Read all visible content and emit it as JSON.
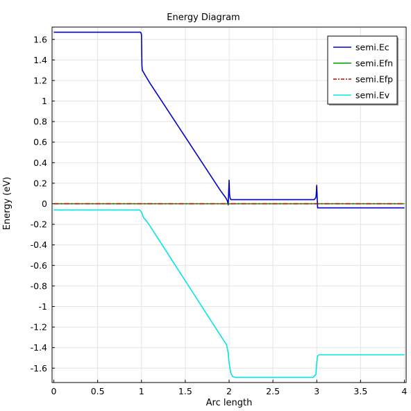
{
  "chart_data": {
    "type": "line",
    "title": "Energy Diagram",
    "xlabel": "Arc length",
    "ylabel": "Energy (eV)",
    "xlim": [
      -0.02,
      4.02
    ],
    "ylim": [
      -1.74,
      1.72
    ],
    "xticks": [
      0,
      0.5,
      1,
      1.5,
      2,
      2.5,
      3,
      3.5,
      4
    ],
    "xtick_labels": [
      "0",
      "0.5",
      "1",
      "1.5",
      "2",
      "2.5",
      "3",
      "3.5",
      "4"
    ],
    "yticks": [
      1.6,
      1.4,
      1.2,
      1,
      0.8,
      0.6,
      0.4,
      0.2,
      0,
      -0.2,
      -0.4,
      -0.6,
      -0.8,
      -1,
      -1.2,
      -1.4,
      -1.6
    ],
    "ytick_labels": [
      "1.6",
      "1.4",
      "1.2",
      "1",
      "0.8",
      "0.6",
      "0.4",
      "0.2",
      "0",
      "-0.2",
      "-0.4",
      "-0.6",
      "-0.8",
      "-1",
      "-1.2",
      "-1.4",
      "-1.6"
    ],
    "grid": true,
    "legend_position": "top-right",
    "series": [
      {
        "name": "semi.Ec",
        "color": "#0000cc",
        "dash": "solid",
        "x": [
          0,
          0.99,
          1.0,
          1.005,
          1.01,
          1.05,
          1.1,
          1.5,
          1.9,
          1.96,
          1.98,
          1.99,
          2.0,
          2.005,
          2.01,
          2.02,
          2.05,
          2.5,
          2.97,
          2.99,
          2.995,
          3.0,
          3.01,
          4.0
        ],
        "y": [
          1.67,
          1.67,
          1.65,
          1.35,
          1.3,
          1.24,
          1.17,
          0.65,
          0.13,
          0.06,
          0.03,
          -0.01,
          0.23,
          0.1,
          0.06,
          0.04,
          0.04,
          0.04,
          0.04,
          0.06,
          0.1,
          0.18,
          -0.04,
          -0.04
        ]
      },
      {
        "name": "semi.Efn",
        "color": "#009900",
        "dash": "solid",
        "x": [
          0,
          4.0
        ],
        "y": [
          0,
          0
        ]
      },
      {
        "name": "semi.Efp",
        "color": "#cc0000",
        "dash": "dashdot",
        "x": [
          0,
          4.0
        ],
        "y": [
          0,
          0
        ]
      },
      {
        "name": "semi.Ev",
        "color": "#00e5e5",
        "dash": "solid",
        "x": [
          0,
          0.98,
          1.0,
          1.02,
          1.05,
          1.1,
          1.5,
          1.9,
          1.97,
          1.99,
          2.0,
          2.02,
          2.04,
          2.07,
          2.1,
          2.5,
          2.9,
          2.96,
          2.99,
          3.0,
          3.01,
          3.03,
          4.0
        ],
        "y": [
          -0.06,
          -0.06,
          -0.08,
          -0.13,
          -0.16,
          -0.22,
          -0.75,
          -1.28,
          -1.37,
          -1.45,
          -1.55,
          -1.65,
          -1.68,
          -1.69,
          -1.69,
          -1.69,
          -1.69,
          -1.69,
          -1.66,
          -1.55,
          -1.48,
          -1.47,
          -1.47
        ]
      }
    ]
  }
}
